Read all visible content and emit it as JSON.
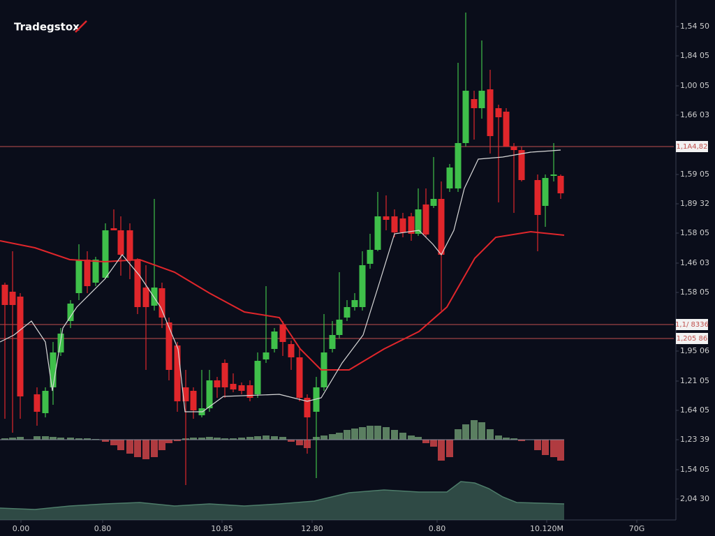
{
  "brand": "Tradegstox",
  "chart_data": {
    "type": "candlestick",
    "up_color": "#3fbf4a",
    "down_color": "#e0262b",
    "xlim": [
      0,
      965
    ],
    "ylim": [
      0,
      745
    ],
    "y2lim": [
      -115,
      630
    ],
    "xticks": [
      {
        "value": 30,
        "label": "0.00"
      },
      {
        "value": 147,
        "label": "0.80"
      },
      {
        "value": 318,
        "label": "10.85"
      },
      {
        "value": 447,
        "label": "12.80"
      },
      {
        "value": 626,
        "label": "0.80"
      },
      {
        "value": 783,
        "label": "10.120M"
      },
      {
        "value": 912,
        "label": "70G"
      }
    ],
    "yticks": [
      {
        "value": 707,
        "label": "1,54 50"
      },
      {
        "value": 665,
        "label": "1,84 05"
      },
      {
        "value": 622,
        "label": "1,00 05"
      },
      {
        "value": 580,
        "label": "1,66 03"
      },
      {
        "value": 495,
        "label": "1,59 05"
      },
      {
        "value": 453,
        "label": "1,89 32"
      },
      {
        "value": 411,
        "label": "1,58 05"
      },
      {
        "value": 368,
        "label": "1,46 03"
      },
      {
        "value": 326,
        "label": "1,58 05"
      },
      {
        "value": 242,
        "label": "1,95 06"
      },
      {
        "value": 199,
        "label": "1,21 05"
      },
      {
        "value": 157,
        "label": "1,64 05"
      },
      {
        "value": 115,
        "label": "1,23 39"
      },
      {
        "value": 72,
        "label": "1,54 05"
      },
      {
        "value": 30,
        "label": "2,04 30"
      }
    ],
    "price_lines": [
      {
        "value": 535,
        "label": "1,1A4,82",
        "color": "#c0504d"
      },
      {
        "value": 280,
        "label": "1,1/ 8336",
        "color": "#c0504d"
      },
      {
        "value": 260,
        "label": "1,205 86",
        "color": "#c0504d"
      }
    ],
    "candles": {
      "x": [
        7,
        18,
        29,
        53,
        65,
        76,
        87,
        101,
        113,
        125,
        137,
        151,
        163,
        173,
        186,
        197,
        209,
        221,
        232,
        242,
        254,
        266,
        277,
        289,
        300,
        311,
        322,
        334,
        346,
        358,
        369,
        381,
        393,
        405,
        417,
        429,
        440,
        453,
        464,
        476,
        486,
        497,
        508,
        519,
        530,
        541,
        553,
        565,
        577,
        589,
        599,
        610,
        621,
        632,
        644,
        656,
        667,
        679,
        690,
        702,
        714,
        725,
        736,
        747,
        770,
        781,
        793,
        803
      ],
      "open": [
        337,
        327,
        320,
        180,
        153,
        190,
        240,
        285,
        325,
        373,
        340,
        347,
        418,
        415,
        415,
        372,
        333,
        307,
        332,
        283,
        250,
        190,
        185,
        150,
        160,
        200,
        225,
        195,
        193,
        193,
        180,
        230,
        245,
        280,
        252,
        233,
        175,
        155,
        190,
        245,
        265,
        290,
        305,
        305,
        367,
        387,
        435,
        435,
        432,
        435,
        410,
        452,
        450,
        460,
        475,
        475,
        540,
        603,
        590,
        617,
        590,
        585,
        535,
        530,
        487,
        450,
        493,
        493
      ],
      "high": [
        340,
        385,
        325,
        190,
        190,
        255,
        275,
        315,
        395,
        385,
        377,
        425,
        445,
        435,
        425,
        375,
        365,
        460,
        340,
        290,
        255,
        215,
        190,
        215,
        215,
        205,
        230,
        210,
        197,
        200,
        240,
        335,
        275,
        285,
        257,
        245,
        180,
        205,
        295,
        285,
        355,
        315,
        325,
        385,
        410,
        470,
        465,
        445,
        440,
        440,
        475,
        475,
        520,
        485,
        510,
        655,
        727,
        615,
        687,
        645,
        595,
        590,
        540,
        535,
        495,
        495,
        540,
        495
      ],
      "low": [
        145,
        125,
        145,
        135,
        147,
        165,
        235,
        275,
        315,
        325,
        335,
        345,
        415,
        350,
        345,
        295,
        215,
        300,
        275,
        200,
        155,
        50,
        145,
        147,
        155,
        175,
        175,
        183,
        180,
        170,
        175,
        225,
        240,
        235,
        215,
        170,
        95,
        60,
        185,
        240,
        260,
        285,
        300,
        300,
        360,
        385,
        415,
        405,
        405,
        400,
        407,
        405,
        447,
        300,
        470,
        470,
        535,
        545,
        575,
        525,
        455,
        535,
        440,
        485,
        385,
        420,
        485,
        460
      ],
      "close": [
        308,
        308,
        177,
        155,
        185,
        240,
        267,
        310,
        372,
        335,
        373,
        415,
        415,
        380,
        373,
        305,
        305,
        333,
        290,
        215,
        170,
        170,
        157,
        160,
        200,
        190,
        190,
        187,
        185,
        175,
        228,
        240,
        270,
        255,
        233,
        175,
        147,
        190,
        240,
        265,
        287,
        305,
        315,
        365,
        387,
        435,
        430,
        412,
        412,
        410,
        445,
        409,
        460,
        380,
        505,
        540,
        615,
        590,
        615,
        550,
        577,
        535,
        530,
        487,
        437,
        490,
        495,
        468
      ]
    },
    "series": [
      {
        "color": "#e0262b",
        "x": [
          0,
          50,
          100,
          150,
          200,
          250,
          300,
          350,
          400,
          430,
          460,
          500,
          550,
          600,
          640,
          680,
          710,
          760,
          808
        ],
        "values": [
          400,
          390,
          373,
          370,
          373,
          355,
          325,
          298,
          290,
          245,
          215,
          215,
          245,
          270,
          305,
          375,
          405,
          413,
          408
        ]
      },
      {
        "color": "#d8d8d8",
        "x": [
          0,
          20,
          45,
          65,
          75,
          90,
          110,
          150,
          175,
          200,
          230,
          255,
          265,
          290,
          320,
          400,
          440,
          460,
          490,
          520,
          545,
          565,
          600,
          620,
          632,
          650,
          665,
          685,
          720,
          760,
          790,
          803
        ],
        "values": [
          255,
          265,
          285,
          255,
          185,
          275,
          305,
          345,
          380,
          350,
          305,
          245,
          155,
          155,
          177,
          180,
          170,
          175,
          225,
          265,
          345,
          410,
          415,
          395,
          380,
          415,
          475,
          517,
          520,
          527,
          529,
          530
        ]
      }
    ],
    "histogram": {
      "axis": "y2",
      "up_color": "#6f9c73",
      "down_color": "#d9474a",
      "values": [
        2,
        3,
        4,
        5,
        5,
        4,
        3,
        3,
        2,
        2,
        1,
        -3,
        -8,
        -15,
        -20,
        -25,
        -28,
        -25,
        -15,
        -5,
        -2,
        2,
        3,
        3,
        4,
        3,
        2,
        2,
        3,
        4,
        5,
        6,
        5,
        4,
        -3,
        -8,
        -12,
        4,
        6,
        8,
        10,
        14,
        16,
        18,
        20,
        20,
        18,
        14,
        10,
        6,
        4,
        -5,
        -10,
        -30,
        -25,
        15,
        22,
        28,
        25,
        15,
        6,
        3,
        2,
        -2,
        -15,
        -22,
        -25,
        -30
      ]
    },
    "oscillator": {
      "axis": "y2",
      "color": "#4e7d6a",
      "x": [
        0,
        50,
        100,
        150,
        200,
        250,
        300,
        350,
        400,
        450,
        500,
        550,
        600,
        640,
        660,
        680,
        700,
        720,
        740,
        808
      ],
      "values": [
        -98,
        -100,
        -95,
        -92,
        -90,
        -95,
        -92,
        -95,
        -92,
        -88,
        -76,
        -72,
        -75,
        -75,
        -60,
        -62,
        -70,
        -82,
        -90,
        -92
      ]
    }
  }
}
